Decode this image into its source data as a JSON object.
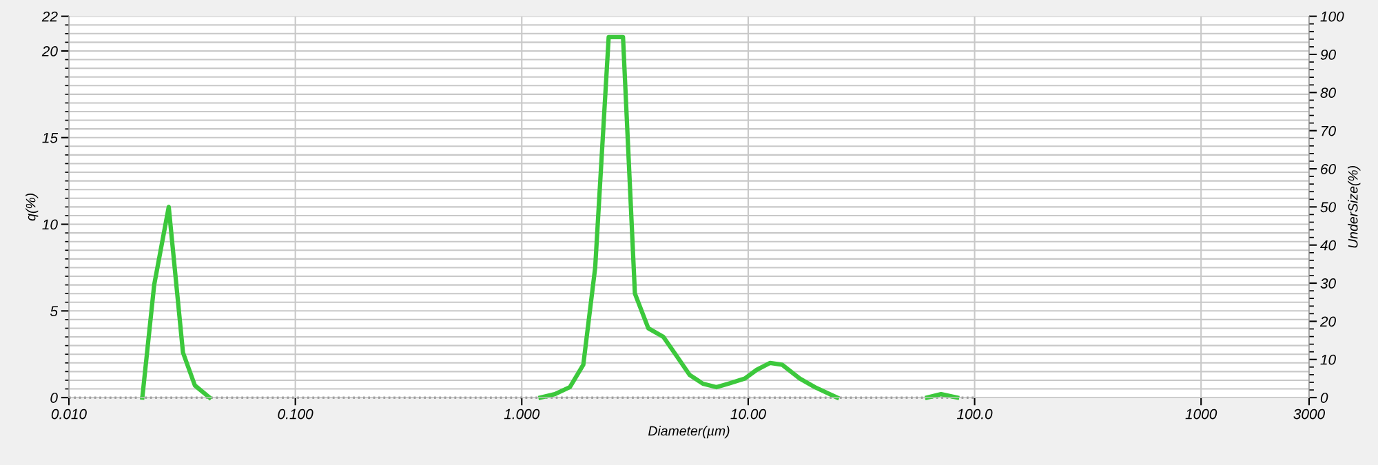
{
  "chart_data": {
    "type": "line",
    "xlabel": "Diameter(µm)",
    "ylabel": "q(%)",
    "y2label": "UnderSize(%)",
    "log": "x",
    "grid": true,
    "marker": "none",
    "xlim": [
      0.01,
      3000
    ],
    "xticks": [
      {
        "value": 0.01,
        "label": "0.010"
      },
      {
        "value": 0.1,
        "label": "0.100"
      },
      {
        "value": 1,
        "label": "1.000"
      },
      {
        "value": 10,
        "label": "10.00"
      },
      {
        "value": 100,
        "label": "100.0"
      },
      1000,
      3000
    ],
    "ylim": [
      0,
      22
    ],
    "yticks": [
      0,
      5,
      10,
      15,
      20,
      22
    ],
    "y2lim": [
      0,
      100
    ],
    "y2ticks": [
      0,
      10,
      20,
      30,
      40,
      50,
      60,
      70,
      80,
      90,
      100
    ],
    "series": [
      {
        "color": "#555555",
        "line_style": "dotted",
        "x": [
          0.01,
          100
        ],
        "values": [
          0,
          0
        ]
      },
      {
        "color": "#3cc83c",
        "line_style": "solid",
        "x": [
          0.0211,
          0.0238,
          0.0276,
          0.0319,
          0.036,
          0.0418,
          null,
          1.21,
          1.4,
          1.63,
          1.87,
          2.11,
          2.42,
          2.8,
          3.16,
          3.62,
          4.22,
          4.83,
          5.52,
          6.31,
          7.24,
          8.17,
          9.66,
          10.9,
          12.5,
          14.1,
          16.9,
          19.7,
          24.7,
          null,
          61.7,
          71.1,
          83.7
        ],
        "values": [
          0,
          6.5,
          11.0,
          2.6,
          0.7,
          0,
          null,
          0,
          0.2,
          0.6,
          1.9,
          7.5,
          20.8,
          20.8,
          6.0,
          4.0,
          3.5,
          2.4,
          1.3,
          0.8,
          0.6,
          0.8,
          1.1,
          1.6,
          2.0,
          1.9,
          1.1,
          0.6,
          0,
          null,
          0,
          0.2,
          0
        ]
      }
    ]
  }
}
